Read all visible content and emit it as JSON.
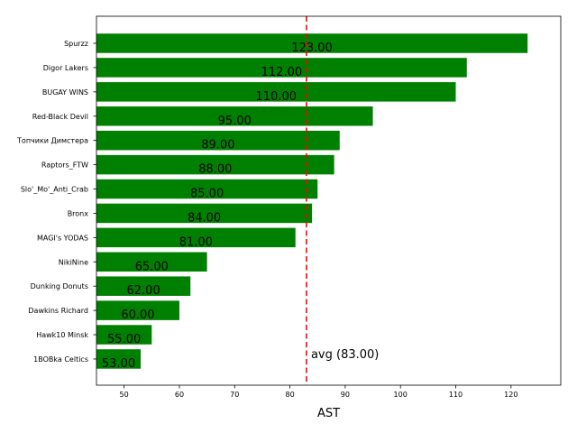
{
  "chart_data": {
    "type": "bar",
    "orientation": "horizontal",
    "categories": [
      "Spurzz",
      "Digor Lakers",
      "BUGAY WINS",
      "Red-Black Devil",
      "Топчики Димстера",
      "Raptors_FTW",
      "Slo'_Mo'_Anti_Crab",
      "Bronx",
      "MAGI's YODAS",
      "NikiNine",
      "Dunking Donuts",
      "Dawkins Richard",
      "Hawk10 Minsk",
      "1BOBka Celtics"
    ],
    "values": [
      123,
      112,
      110,
      95,
      89,
      88,
      85,
      84,
      81,
      65,
      62,
      60,
      55,
      53
    ],
    "value_labels": [
      "123.00",
      "112.00",
      "110.00",
      "95.00",
      "89.00",
      "88.00",
      "85.00",
      "84.00",
      "81.00",
      "65.00",
      "62.00",
      "60.00",
      "55.00",
      "53.00"
    ],
    "xlabel": "AST",
    "ylabel": "",
    "title": "",
    "xlim": [
      45,
      129
    ],
    "xticks": [
      50,
      60,
      70,
      80,
      90,
      100,
      110,
      120
    ],
    "bar_color": "#008000",
    "average": {
      "value": 83,
      "label": "avg (83.00)",
      "color": "#ff0000"
    },
    "grid": false,
    "legend": "none"
  }
}
